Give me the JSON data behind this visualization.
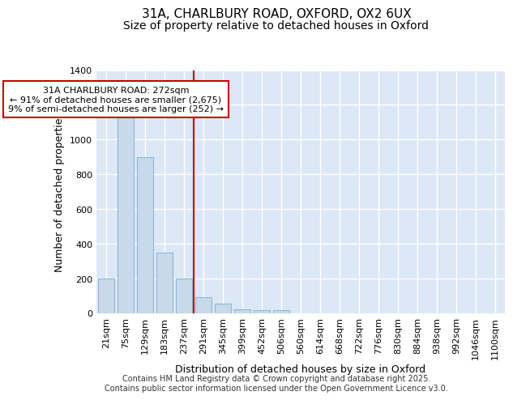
{
  "title_line1": "31A, CHARLBURY ROAD, OXFORD, OX2 6UX",
  "title_line2": "Size of property relative to detached houses in Oxford",
  "xlabel": "Distribution of detached houses by size in Oxford",
  "ylabel": "Number of detached properties",
  "categories": [
    "21sqm",
    "75sqm",
    "129sqm",
    "183sqm",
    "237sqm",
    "291sqm",
    "345sqm",
    "399sqm",
    "452sqm",
    "506sqm",
    "560sqm",
    "614sqm",
    "668sqm",
    "722sqm",
    "776sqm",
    "830sqm",
    "884sqm",
    "938sqm",
    "992sqm",
    "1046sqm",
    "1100sqm"
  ],
  "values": [
    200,
    1130,
    900,
    350,
    200,
    90,
    55,
    20,
    15,
    15,
    0,
    0,
    0,
    0,
    0,
    0,
    0,
    0,
    0,
    0,
    0
  ],
  "bar_color": "#c8d9eb",
  "bar_edge_color": "#8fb8d8",
  "vline_x_index": 5,
  "vline_color": "#cc0000",
  "annotation_text": "31A CHARLBURY ROAD: 272sqm\n← 91% of detached houses are smaller (2,675)\n9% of semi-detached houses are larger (252) →",
  "annotation_box_color": "#ffffff",
  "annotation_box_edge": "#cc0000",
  "ylim": [
    0,
    1400
  ],
  "yticks": [
    0,
    200,
    400,
    600,
    800,
    1000,
    1200,
    1400
  ],
  "fig_bg_color": "#ffffff",
  "plot_bg_color": "#dce8f5",
  "grid_color": "#c0cfe0",
  "footer": "Contains HM Land Registry data © Crown copyright and database right 2025.\nContains public sector information licensed under the Open Government Licence v3.0.",
  "title_fontsize": 11,
  "subtitle_fontsize": 10,
  "axis_label_fontsize": 9,
  "tick_fontsize": 8,
  "footer_fontsize": 7,
  "annotation_fontsize": 8
}
